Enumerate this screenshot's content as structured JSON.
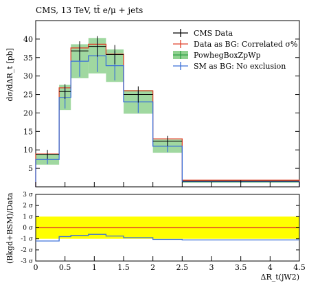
{
  "chart_data": [
    {
      "type": "line",
      "title": "CMS, 13 TeV, tt̄ e/μ + jets",
      "ylabel": "dσ/dΔR_t [pb]",
      "xlim": [
        0,
        4.5
      ],
      "ylim": [
        0,
        45
      ],
      "yticks": [
        5,
        10,
        15,
        20,
        25,
        30,
        35,
        40
      ],
      "x_edges": [
        0,
        0.4,
        0.6,
        0.9,
        1.2,
        1.5,
        2.0,
        2.5,
        4.5
      ],
      "legend_position": "top-right",
      "series": [
        {
          "name": "CMS Data",
          "style": "points",
          "color": "#000000",
          "x": [
            0.2,
            0.5,
            0.75,
            1.05,
            1.35,
            1.75,
            2.25,
            3.5
          ],
          "y": [
            8.8,
            25.8,
            36.8,
            38.0,
            35.8,
            25.0,
            12.4,
            1.5
          ],
          "yerr": [
            1.2,
            2.0,
            2.6,
            2.8,
            2.6,
            2.2,
            1.4,
            0.3
          ]
        },
        {
          "name": "Data as BG: Correlated σ%",
          "style": "step",
          "color": "#e0402a",
          "values": [
            8.9,
            26.8,
            37.6,
            38.6,
            35.9,
            26.0,
            13.0,
            1.8
          ]
        },
        {
          "name": "PowhegBoxZpWp",
          "style": "band",
          "color": "#8fd18f",
          "values": [
            7.4,
            24.2,
            34.0,
            35.5,
            32.8,
            23.0,
            11.0,
            1.4
          ],
          "err": [
            1.4,
            3.4,
            4.6,
            4.8,
            4.4,
            3.2,
            1.8,
            0.3
          ]
        },
        {
          "name": "SM as BG: No exclusion",
          "style": "step",
          "color": "#3a6fd8",
          "values": [
            7.4,
            24.2,
            34.0,
            35.5,
            32.8,
            23.0,
            11.0,
            1.4
          ],
          "yerr": [
            1.3,
            3.0,
            4.2,
            4.4,
            4.0,
            3.0,
            1.6,
            0.3
          ]
        }
      ]
    },
    {
      "type": "line",
      "ylabel": "(Bkgd+BSM)/Data",
      "xlabel": "ΔR_t(jW2)",
      "xlim": [
        0,
        4.5
      ],
      "xticks": [
        0,
        0.5,
        1,
        1.5,
        2,
        2.5,
        3,
        3.5,
        4,
        4.5
      ],
      "xtick_labels": [
        "0",
        "0.5",
        "1",
        "1.5",
        "2",
        "2.5",
        "3",
        "3.5",
        "4",
        "4.5"
      ],
      "ylim": [
        -3,
        3
      ],
      "yticks": [
        3,
        2,
        1,
        0,
        -1,
        -2,
        -3
      ],
      "ytick_labels": [
        "3 σ",
        "2 σ",
        "1 σ",
        "0 σ",
        "-1 σ",
        "-2 σ",
        "-3 σ"
      ],
      "band": {
        "range": [
          -1,
          1
        ],
        "color": "#ffff00"
      },
      "series": [
        {
          "name": "Data as BG",
          "color": "#e0402a",
          "values": [
            0,
            0,
            0,
            0,
            0,
            0,
            0,
            0
          ]
        },
        {
          "name": "SM as BG",
          "color": "#3a6fd8",
          "values": [
            -1.2,
            -0.8,
            -0.7,
            -0.6,
            -0.75,
            -0.9,
            -1.05,
            -1.1
          ]
        }
      ]
    }
  ],
  "colors": {
    "band_green": "#8fd18f",
    "data_red": "#e0402a",
    "sm_blue": "#3a6fd8",
    "sigma_yellow": "#ffff00"
  }
}
